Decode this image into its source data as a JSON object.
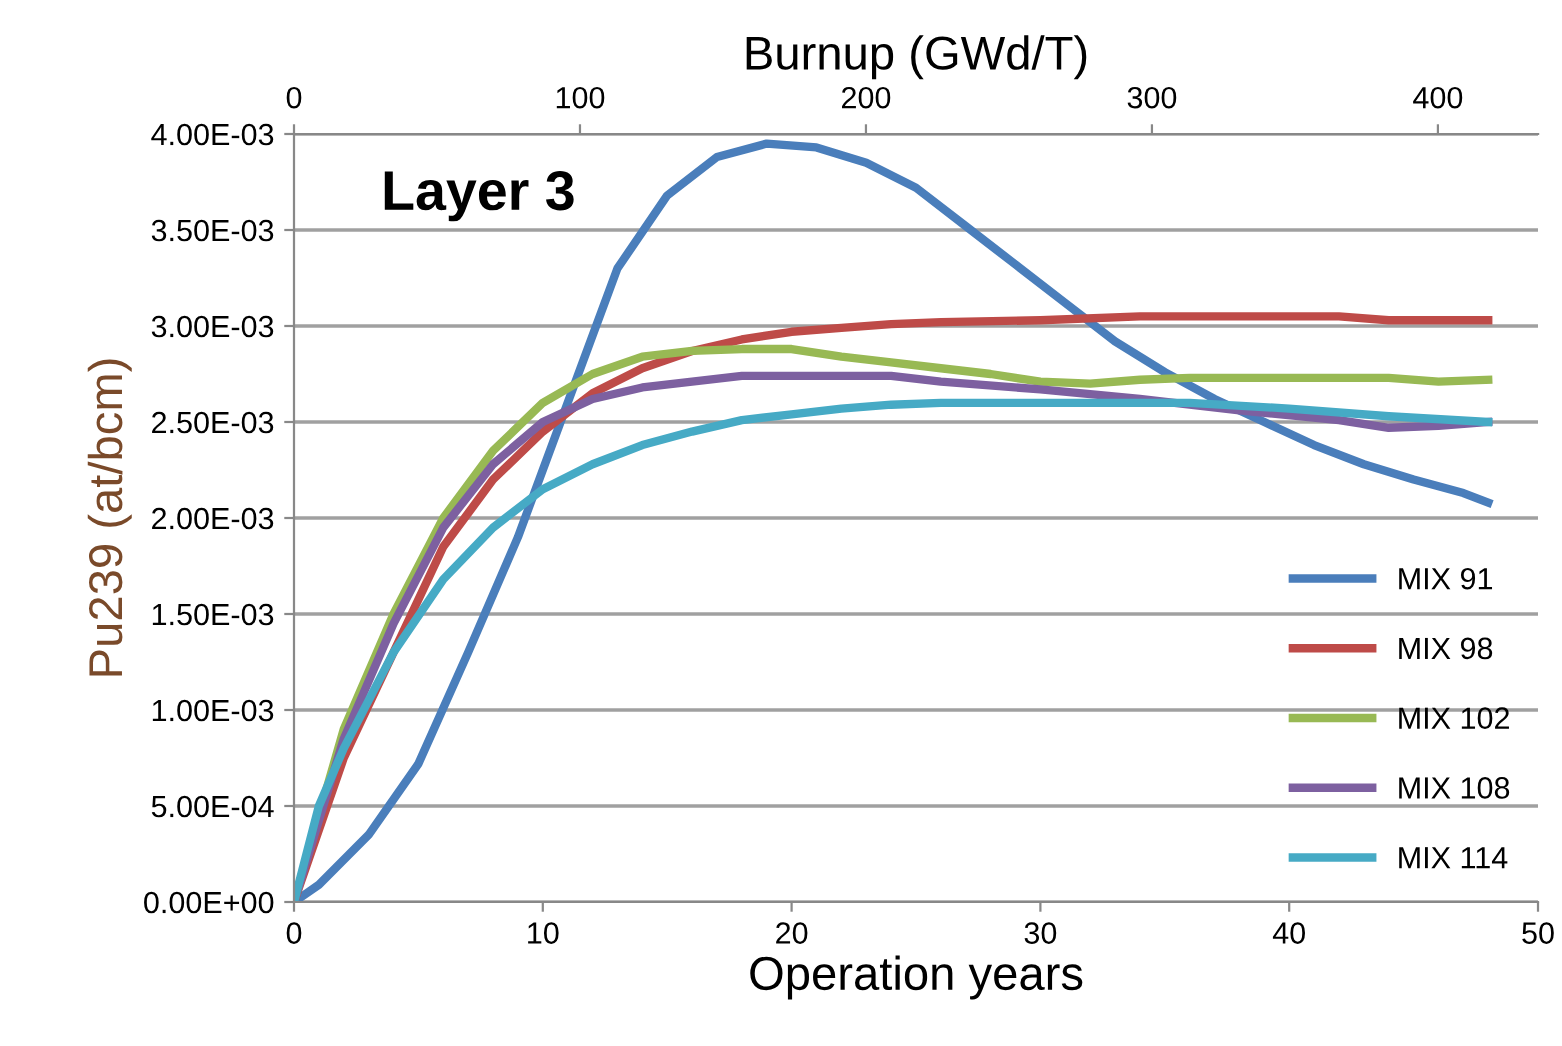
{
  "chart_data": {
    "type": "line",
    "title": "Layer 3",
    "xlabel": "Operation years",
    "ylabel": "Pu239 (at/bcm)",
    "x2label": "Burnup (GWd/T)",
    "xlim": [
      0,
      50
    ],
    "xticks": [
      0,
      10,
      20,
      30,
      40,
      50
    ],
    "x2lim": [
      0,
      435
    ],
    "x2ticks": [
      0,
      100,
      200,
      300,
      400
    ],
    "ylim": [
      0,
      0.004
    ],
    "yticks": [
      {
        "value": 0,
        "label": "0.00E+00"
      },
      {
        "value": 0.0005,
        "label": "5.00E-04"
      },
      {
        "value": 0.001,
        "label": "1.00E-03"
      },
      {
        "value": 0.0015,
        "label": "1.50E-03"
      },
      {
        "value": 0.002,
        "label": "2.00E-03"
      },
      {
        "value": 0.0025,
        "label": "2.50E-03"
      },
      {
        "value": 0.003,
        "label": "3.00E-03"
      },
      {
        "value": 0.0035,
        "label": "3.50E-03"
      },
      {
        "value": 0.004,
        "label": "4.00E-03"
      }
    ],
    "grid": "y",
    "legend": "bottom right",
    "marker": "none",
    "line_style": "solid",
    "series": [
      {
        "name": "MIX 91",
        "color": "#4a7ebb",
        "x": [
          0,
          1,
          3,
          5,
          7,
          9,
          11,
          13,
          15,
          17,
          19,
          21,
          23,
          25,
          27,
          29,
          31,
          33,
          35,
          37,
          39,
          41,
          43,
          45,
          47,
          48
        ],
        "values": [
          0,
          9e-05,
          0.00035,
          0.00072,
          0.0013,
          0.0019,
          0.0026,
          0.0033,
          0.00368,
          0.00388,
          0.00395,
          0.00393,
          0.00385,
          0.00372,
          0.00352,
          0.00332,
          0.00312,
          0.00292,
          0.00276,
          0.00262,
          0.0025,
          0.00238,
          0.00228,
          0.0022,
          0.00213,
          0.00208
        ]
      },
      {
        "name": "MIX 98",
        "color": "#be4b48",
        "x": [
          0,
          2,
          4,
          6,
          8,
          10,
          12,
          14,
          16,
          18,
          20,
          22,
          24,
          26,
          30,
          34,
          42,
          44,
          48
        ],
        "values": [
          0,
          0.00075,
          0.0013,
          0.00185,
          0.0022,
          0.00245,
          0.00265,
          0.00278,
          0.00287,
          0.00293,
          0.00297,
          0.00299,
          0.00301,
          0.00302,
          0.00303,
          0.00305,
          0.00305,
          0.00303,
          0.00303
        ]
      },
      {
        "name": "MIX 102",
        "color": "#98b954",
        "x": [
          0,
          2,
          4,
          6,
          8,
          10,
          12,
          14,
          16,
          18,
          20,
          22,
          24,
          26,
          28,
          30,
          32,
          34,
          36,
          44,
          46,
          48
        ],
        "values": [
          0,
          0.0009,
          0.0015,
          0.002,
          0.00235,
          0.0026,
          0.00275,
          0.00284,
          0.00287,
          0.00288,
          0.00288,
          0.00284,
          0.00281,
          0.00278,
          0.00275,
          0.00271,
          0.0027,
          0.00272,
          0.00273,
          0.00273,
          0.00271,
          0.00272
        ]
      },
      {
        "name": "MIX 108",
        "color": "#7d60a0",
        "x": [
          0,
          2,
          4,
          6,
          8,
          10,
          12,
          14,
          16,
          18,
          24,
          26,
          30,
          34,
          38,
          42,
          44,
          46,
          48
        ],
        "values": [
          0,
          0.00085,
          0.00145,
          0.00195,
          0.00228,
          0.0025,
          0.00262,
          0.00268,
          0.00271,
          0.00274,
          0.00274,
          0.00271,
          0.00267,
          0.00262,
          0.00256,
          0.00251,
          0.00247,
          0.00248,
          0.0025
        ]
      },
      {
        "name": "MIX 114",
        "color": "#46aac5",
        "x": [
          0,
          1,
          2,
          4,
          6,
          8,
          10,
          12,
          14,
          16,
          18,
          20,
          22,
          24,
          26,
          36,
          40,
          44,
          48
        ],
        "values": [
          0,
          0.0005,
          0.0008,
          0.0013,
          0.00168,
          0.00195,
          0.00215,
          0.00228,
          0.00238,
          0.00245,
          0.00251,
          0.00254,
          0.00257,
          0.00259,
          0.0026,
          0.0026,
          0.00257,
          0.00253,
          0.0025
        ]
      }
    ]
  }
}
